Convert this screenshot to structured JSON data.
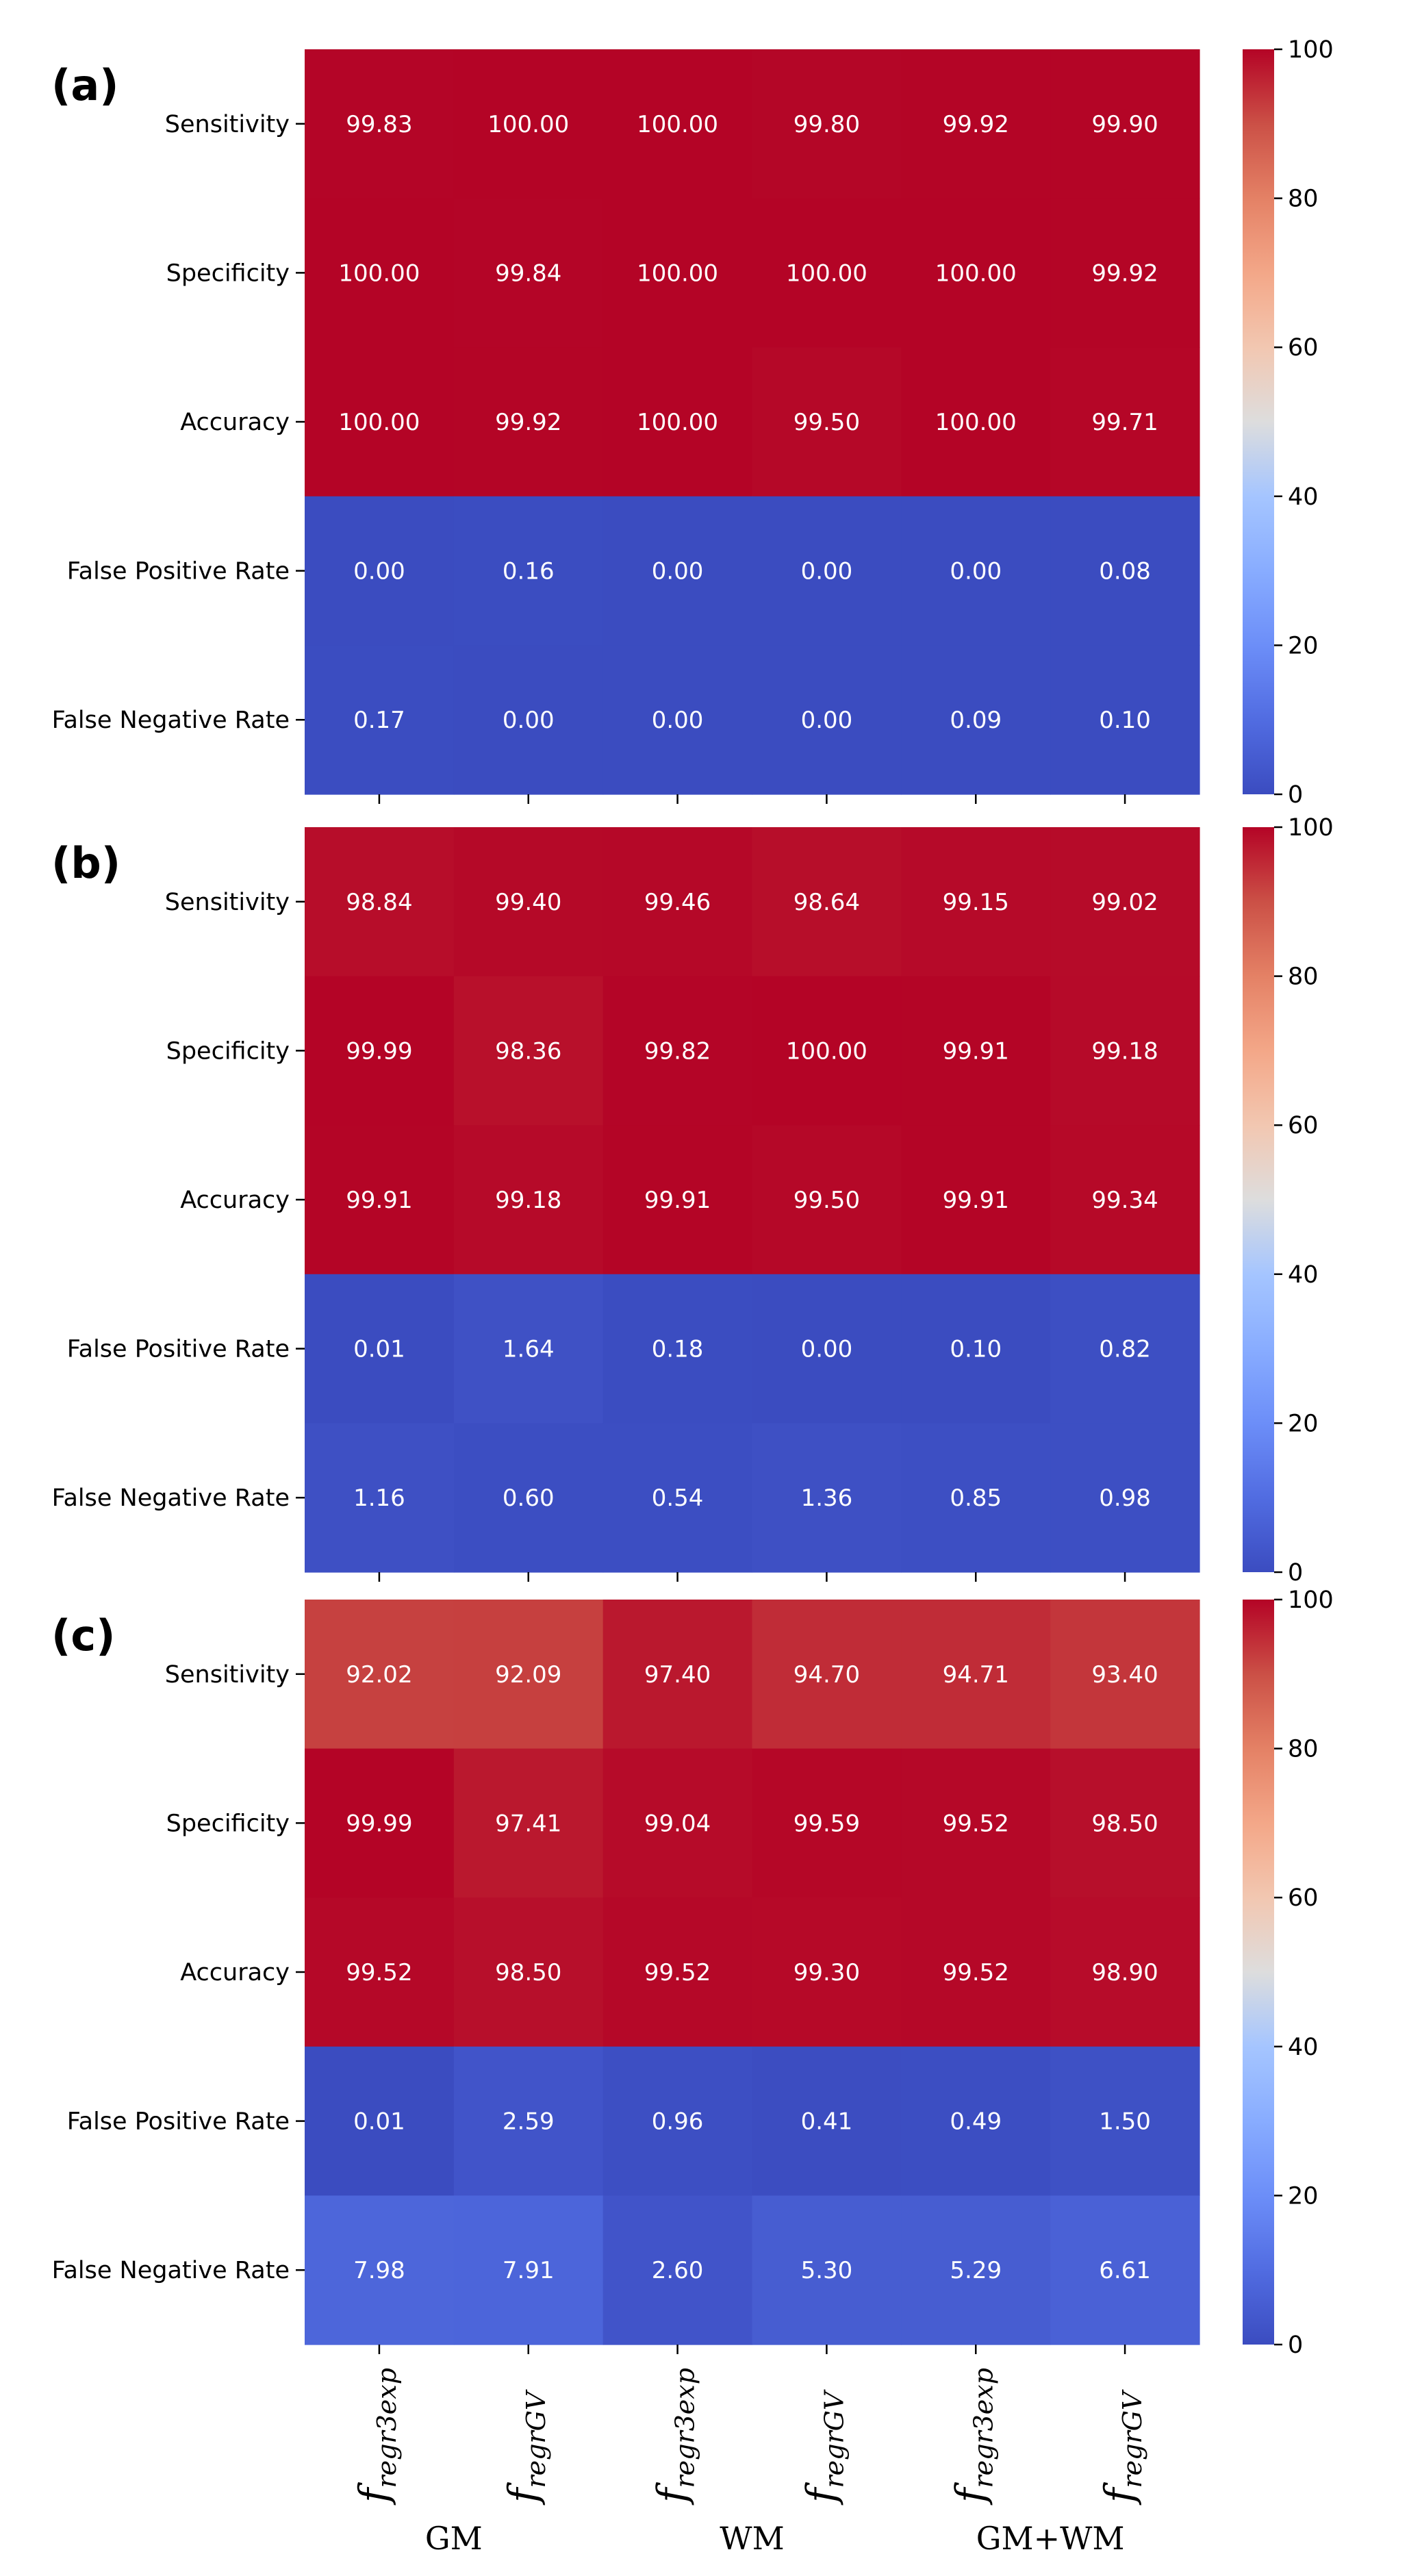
{
  "chart_data": [
    {
      "type": "heatmap",
      "panel_label": "(a)",
      "rows": [
        "Sensitivity",
        "Specificity",
        "Accuracy",
        "False Positive Rate",
        "False Negative Rate"
      ],
      "values": [
        [
          99.83,
          100.0,
          100.0,
          99.8,
          99.92,
          99.9
        ],
        [
          100.0,
          99.84,
          100.0,
          100.0,
          100.0,
          99.92
        ],
        [
          100.0,
          99.92,
          100.0,
          99.5,
          100.0,
          99.71
        ],
        [
          0.0,
          0.16,
          0.0,
          0.0,
          0.0,
          0.08
        ],
        [
          0.17,
          0.0,
          0.0,
          0.0,
          0.09,
          0.1
        ]
      ],
      "colorbar": {
        "min": 0,
        "max": 100,
        "ticks": [
          0,
          20,
          40,
          60,
          80,
          100
        ],
        "colormap": "coolwarm"
      }
    },
    {
      "type": "heatmap",
      "panel_label": "(b)",
      "rows": [
        "Sensitivity",
        "Specificity",
        "Accuracy",
        "False Positive Rate",
        "False Negative Rate"
      ],
      "values": [
        [
          98.84,
          99.4,
          99.46,
          98.64,
          99.15,
          99.02
        ],
        [
          99.99,
          98.36,
          99.82,
          100.0,
          99.91,
          99.18
        ],
        [
          99.91,
          99.18,
          99.91,
          99.5,
          99.91,
          99.34
        ],
        [
          0.01,
          1.64,
          0.18,
          0.0,
          0.1,
          0.82
        ],
        [
          1.16,
          0.6,
          0.54,
          1.36,
          0.85,
          0.98
        ]
      ],
      "colorbar": {
        "min": 0,
        "max": 100,
        "ticks": [
          0,
          20,
          40,
          60,
          80,
          100
        ],
        "colormap": "coolwarm"
      }
    },
    {
      "type": "heatmap",
      "panel_label": "(c)",
      "rows": [
        "Sensitivity",
        "Specificity",
        "Accuracy",
        "False Positive Rate",
        "False Negative Rate"
      ],
      "values": [
        [
          92.02,
          92.09,
          97.4,
          94.7,
          94.71,
          93.4
        ],
        [
          99.99,
          97.41,
          99.04,
          99.59,
          99.52,
          98.5
        ],
        [
          99.52,
          98.5,
          99.52,
          99.3,
          99.52,
          98.9
        ],
        [
          0.01,
          2.59,
          0.96,
          0.41,
          0.49,
          1.5
        ],
        [
          7.98,
          7.91,
          2.6,
          5.3,
          5.29,
          6.61
        ]
      ],
      "colorbar": {
        "min": 0,
        "max": 100,
        "ticks": [
          0,
          20,
          40,
          60,
          80,
          100
        ],
        "colormap": "coolwarm"
      }
    }
  ],
  "x_tick_labels": [
    {
      "base": "f",
      "sub": "regr3exp"
    },
    {
      "base": "f",
      "sub": "regrGV"
    },
    {
      "base": "f",
      "sub": "regr3exp"
    },
    {
      "base": "f",
      "sub": "regrGV"
    },
    {
      "base": "f",
      "sub": "regr3exp"
    },
    {
      "base": "f",
      "sub": "regrGV"
    }
  ],
  "x_groups": [
    "GM",
    "WM",
    "GM+WM"
  ]
}
